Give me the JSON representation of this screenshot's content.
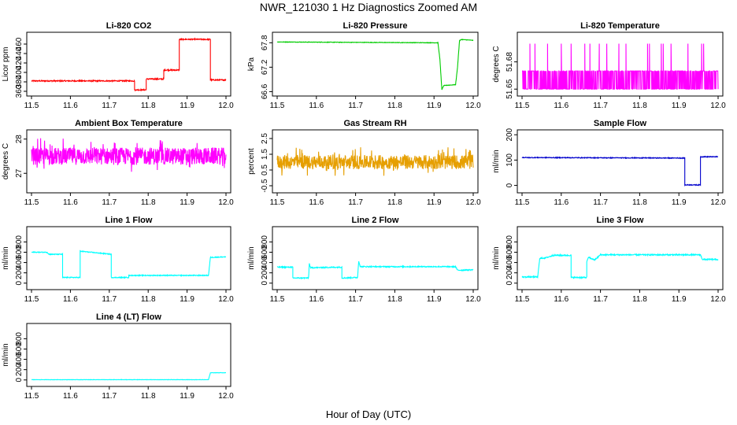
{
  "title": "NWR_121030  1 Hz Diagnostics Zoomed AM",
  "xlabel": "Hour of Day (UTC)",
  "chart_data": [
    {
      "type": "line",
      "title": "Li-820 CO2",
      "ylabel": "Licor ppm",
      "color": "#ff0000",
      "xlim": [
        11.5,
        12.0
      ],
      "ylim": [
        355,
        480
      ],
      "xticks": [
        11.5,
        11.6,
        11.7,
        11.8,
        11.9,
        12.0
      ],
      "yticks": [
        360,
        380,
        400,
        420,
        440,
        460
      ],
      "noise": 1.2,
      "series": [
        {
          "x": [
            11.5,
            11.765,
            11.765,
            11.795,
            11.795,
            11.84,
            11.84,
            11.88,
            11.88,
            11.96,
            11.96,
            12.0
          ],
          "values": [
            382,
            382,
            363,
            363,
            386,
            386,
            405,
            405,
            470,
            470,
            384,
            384
          ]
        }
      ]
    },
    {
      "type": "line",
      "title": "Li-820 Pressure",
      "ylabel": "kPa",
      "color": "#00cc00",
      "xlim": [
        11.5,
        12.0
      ],
      "ylim": [
        66.55,
        68.0
      ],
      "xticks": [
        11.5,
        11.6,
        11.7,
        11.8,
        11.9,
        12.0
      ],
      "yticks": [
        66.6,
        67.2,
        67.8
      ],
      "noise": 0.006,
      "series": [
        {
          "x": [
            11.5,
            11.91,
            11.915,
            11.92,
            11.925,
            11.955,
            11.96,
            11.965,
            11.97,
            12.0
          ],
          "values": [
            67.82,
            67.8,
            67.4,
            66.65,
            66.75,
            66.77,
            67.2,
            67.85,
            67.88,
            67.86
          ]
        }
      ]
    },
    {
      "type": "line",
      "title": "Li-820 Temperature",
      "ylabel": "degrees C",
      "color": "#ff00ff",
      "xlim": [
        11.5,
        12.0
      ],
      "ylim": [
        51.645,
        51.71
      ],
      "xticks": [
        11.5,
        11.6,
        11.7,
        11.8,
        11.9,
        12.0
      ],
      "yticks": [
        51.65,
        51.68
      ],
      "style": "quantized",
      "levels": [
        51.65,
        51.67,
        51.7
      ],
      "upper_spikes_x": [
        11.52,
        11.533,
        11.565,
        11.6,
        11.625,
        11.66,
        11.673,
        11.697,
        11.716,
        11.747,
        11.765,
        11.82,
        11.825,
        11.855,
        11.86,
        11.88,
        11.923,
        11.958,
        11.963
      ],
      "series": [
        {
          "name": "",
          "values": []
        }
      ]
    },
    {
      "type": "line",
      "title": "Ambient Box Temperature",
      "ylabel": "degrees C",
      "color": "#ff00ff",
      "xlim": [
        11.5,
        12.0
      ],
      "ylim": [
        26.5,
        28.2
      ],
      "xticks": [
        11.5,
        11.6,
        11.7,
        11.8,
        11.9,
        12.0
      ],
      "yticks": [
        27.0,
        28.0
      ],
      "style": "noise",
      "center": 27.5,
      "amplitude": 0.25,
      "series": [
        {
          "x": [
            11.5,
            12.0
          ],
          "values": [
            27.5,
            27.5
          ]
        }
      ]
    },
    {
      "type": "line",
      "title": "Gas Stream RH",
      "ylabel": "percent",
      "color": "#e69f00",
      "xlim": [
        11.5,
        12.0
      ],
      "ylim": [
        -0.8,
        2.9
      ],
      "xticks": [
        11.5,
        11.6,
        11.7,
        11.8,
        11.9,
        12.0
      ],
      "yticks": [
        -0.5,
        0.5,
        1.5,
        2.5
      ],
      "style": "noise",
      "center": 1.0,
      "amplitude": 0.45,
      "series": [
        {
          "x": [
            11.5,
            12.0
          ],
          "values": [
            1.0,
            1.0
          ]
        }
      ]
    },
    {
      "type": "line",
      "title": "Sample Flow",
      "ylabel": "ml/min",
      "color": "#0000cc",
      "xlim": [
        11.5,
        12.0
      ],
      "ylim": [
        -20,
        210
      ],
      "xticks": [
        11.5,
        11.6,
        11.7,
        11.8,
        11.9,
        12.0
      ],
      "yticks": [
        0,
        100,
        200
      ],
      "noise": 1.5,
      "series": [
        {
          "x": [
            11.5,
            11.915,
            11.915,
            11.955,
            11.955,
            12.0
          ],
          "values": [
            110,
            108,
            2,
            2,
            113,
            113
          ]
        }
      ]
    },
    {
      "type": "line",
      "title": "Line 1 Flow",
      "ylabel": "ml/min",
      "color": "#00ffff",
      "xlim": [
        11.5,
        12.0
      ],
      "ylim": [
        -80,
        1050
      ],
      "xticks": [
        11.5,
        11.6,
        11.7,
        11.8,
        11.9,
        12.0
      ],
      "yticks": [
        0,
        200,
        400,
        600,
        800
      ],
      "noise": 8,
      "series": [
        {
          "x": [
            11.5,
            11.54,
            11.545,
            11.58,
            11.58,
            11.625,
            11.625,
            11.705,
            11.705,
            11.75,
            11.75,
            11.955,
            11.96,
            12.0
          ],
          "values": [
            600,
            600,
            560,
            560,
            110,
            110,
            620,
            560,
            110,
            110,
            150,
            150,
            500,
            510
          ]
        }
      ]
    },
    {
      "type": "line",
      "title": "Line 2 Flow",
      "ylabel": "ml/min",
      "color": "#00ffff",
      "xlim": [
        11.5,
        12.0
      ],
      "ylim": [
        -80,
        1050
      ],
      "xticks": [
        11.5,
        11.6,
        11.7,
        11.8,
        11.9,
        12.0
      ],
      "yticks": [
        0,
        200,
        400,
        600,
        800
      ],
      "noise": 10,
      "series": [
        {
          "x": [
            11.5,
            11.54,
            11.54,
            11.58,
            11.582,
            11.585,
            11.665,
            11.665,
            11.705,
            11.708,
            11.712,
            11.955,
            11.96,
            12.0
          ],
          "values": [
            310,
            310,
            100,
            100,
            380,
            300,
            310,
            100,
            110,
            430,
            320,
            320,
            250,
            260
          ]
        }
      ]
    },
    {
      "type": "line",
      "title": "Line 3 Flow",
      "ylabel": "ml/min",
      "color": "#00ffff",
      "xlim": [
        11.5,
        12.0
      ],
      "ylim": [
        -80,
        1050
      ],
      "xticks": [
        11.5,
        11.6,
        11.7,
        11.8,
        11.9,
        12.0
      ],
      "yticks": [
        0,
        200,
        400,
        600,
        800
      ],
      "noise": 12,
      "series": [
        {
          "x": [
            11.5,
            11.54,
            11.545,
            11.56,
            11.58,
            11.625,
            11.625,
            11.665,
            11.665,
            11.67,
            11.685,
            11.7,
            11.955,
            11.96,
            12.0
          ],
          "values": [
            120,
            120,
            480,
            490,
            540,
            540,
            110,
            110,
            420,
            500,
            450,
            550,
            550,
            460,
            460
          ]
        }
      ]
    },
    {
      "type": "line",
      "title": "Line 4 (LT) Flow",
      "ylabel": "ml/min",
      "color": "#00ffff",
      "xlim": [
        11.5,
        12.0
      ],
      "ylim": [
        -80,
        1050
      ],
      "xticks": [
        11.5,
        11.6,
        11.7,
        11.8,
        11.9,
        12.0
      ],
      "yticks": [
        0,
        200,
        400,
        600,
        800
      ],
      "noise": 3,
      "series": [
        {
          "x": [
            11.5,
            11.955,
            11.96,
            12.0
          ],
          "values": [
            5,
            5,
            140,
            140
          ]
        }
      ]
    }
  ]
}
